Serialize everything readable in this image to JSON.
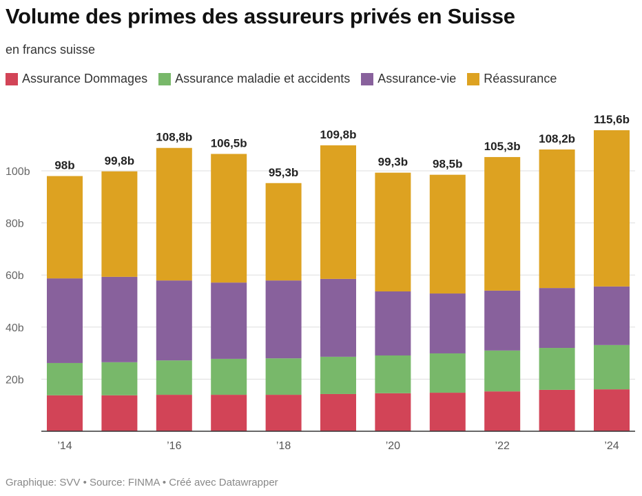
{
  "title": "Volume des primes des assureurs privés en Suisse",
  "subtitle": "en francs suisse",
  "footer": "Graphique: SVV • Source: FINMA • Créé avec Datawrapper",
  "chart_data": {
    "type": "bar",
    "stacked": true,
    "categories": [
      "2014",
      "2015",
      "2016",
      "2017",
      "2018",
      "2019",
      "2020",
      "2021",
      "2022",
      "2023",
      "2024"
    ],
    "x_tick_labels": [
      "’14",
      "",
      "’16",
      "",
      "’18",
      "",
      "’20",
      "",
      "’22",
      "",
      "’24"
    ],
    "series": [
      {
        "name": "Assurance Dommages",
        "color": "#d24457",
        "values": [
          13.8,
          13.8,
          14.0,
          14.0,
          14.0,
          14.3,
          14.6,
          14.8,
          15.3,
          15.9,
          16.1
        ]
      },
      {
        "name": "Assurance maladie et accidents",
        "color": "#78b86a",
        "values": [
          12.4,
          12.7,
          13.2,
          13.8,
          14.0,
          14.3,
          14.5,
          15.1,
          15.7,
          16.1,
          17.0
        ]
      },
      {
        "name": "Assurance-vie",
        "color": "#88619c",
        "values": [
          32.5,
          32.8,
          30.7,
          29.3,
          29.9,
          29.9,
          24.6,
          23.0,
          23.0,
          23.0,
          22.5
        ]
      },
      {
        "name": "Réassurance",
        "color": "#dda221",
        "values": [
          39.3,
          40.5,
          50.9,
          49.4,
          37.4,
          51.3,
          45.6,
          45.6,
          51.3,
          53.2,
          60.0
        ]
      }
    ],
    "totals": [
      98,
      99.8,
      108.8,
      106.5,
      95.3,
      109.8,
      99.3,
      98.5,
      105.3,
      108.2,
      115.6
    ],
    "total_labels": [
      "98b",
      "99,8b",
      "108,8b",
      "106,5b",
      "95,3b",
      "109,8b",
      "99,3b",
      "98,5b",
      "105,3b",
      "108,2b",
      "115,6b"
    ],
    "y_ticks": [
      20,
      40,
      60,
      80,
      100
    ],
    "y_tick_labels": [
      "20b",
      "40b",
      "60b",
      "80b",
      "100b"
    ],
    "ylim": [
      0,
      120
    ],
    "grid": true,
    "legend_placement": "top-left"
  }
}
